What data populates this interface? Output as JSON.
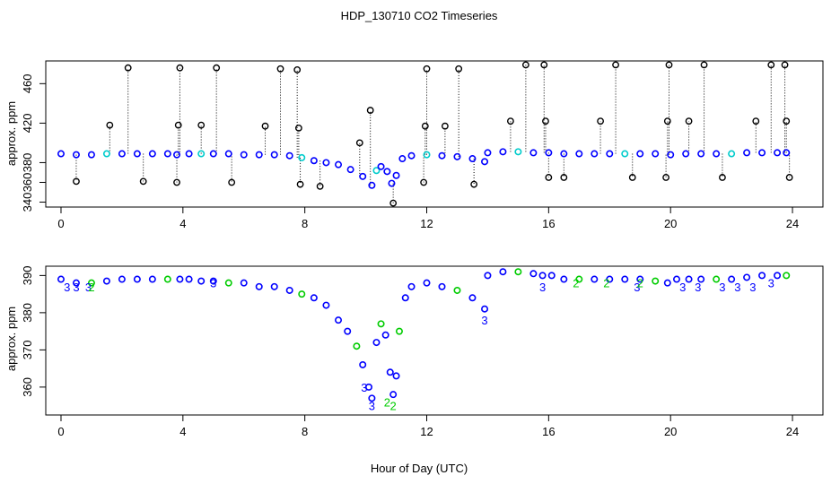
{
  "chart_data": [
    {
      "type": "scatter",
      "title": "HDP_130710  CO2 Timeseries",
      "xlabel": "",
      "ylabel": "approx. ppm",
      "xlim": [
        -0.5,
        25.0
      ],
      "ylim": [
        335,
        483
      ],
      "x_ticks": [
        0,
        4,
        8,
        12,
        16,
        20,
        24
      ],
      "y_ticks": [
        340,
        360,
        380,
        420,
        460
      ],
      "series": [
        {
          "marker": "open circle",
          "points": [
            [
              0.0,
              389
            ],
            [
              0.5,
              388
            ],
            [
              1.0,
              388
            ],
            [
              1.5,
              389
            ],
            [
              2.0,
              389
            ],
            [
              2.5,
              389
            ],
            [
              3.0,
              389
            ],
            [
              3.5,
              389
            ],
            [
              3.8,
              388
            ],
            [
              4.2,
              389
            ],
            [
              4.6,
              389
            ],
            [
              5.0,
              389
            ],
            [
              5.5,
              389
            ],
            [
              6.0,
              388
            ],
            [
              6.5,
              388
            ],
            [
              7.0,
              388
            ],
            [
              7.5,
              387
            ],
            [
              7.9,
              385
            ],
            [
              8.3,
              382
            ],
            [
              8.7,
              380
            ],
            [
              9.1,
              378
            ],
            [
              9.5,
              373
            ],
            [
              9.9,
              366
            ],
            [
              10.2,
              357
            ],
            [
              10.35,
              372
            ],
            [
              10.5,
              376
            ],
            [
              10.7,
              371
            ],
            [
              10.85,
              359
            ],
            [
              11.0,
              367
            ],
            [
              11.2,
              384
            ],
            [
              11.5,
              387
            ],
            [
              12.0,
              388
            ],
            [
              12.5,
              387
            ],
            [
              13.0,
              386
            ],
            [
              13.5,
              384
            ],
            [
              13.9,
              381
            ],
            [
              14.0,
              390
            ],
            [
              14.5,
              391
            ],
            [
              15.0,
              391
            ],
            [
              15.5,
              390
            ],
            [
              16.0,
              390
            ],
            [
              16.5,
              389
            ],
            [
              17.0,
              389
            ],
            [
              17.5,
              389
            ],
            [
              18.0,
              389
            ],
            [
              18.5,
              389
            ],
            [
              19.0,
              389
            ],
            [
              19.5,
              389
            ],
            [
              20.0,
              388
            ],
            [
              20.5,
              389
            ],
            [
              21.0,
              389
            ],
            [
              21.5,
              389
            ],
            [
              22.0,
              389
            ],
            [
              22.5,
              390
            ],
            [
              23.0,
              390
            ],
            [
              23.5,
              390
            ],
            [
              23.8,
              390
            ]
          ]
        },
        {
          "marker": "open circle (outliers)",
          "points": [
            [
              0.5,
              361
            ],
            [
              1.6,
              418
            ],
            [
              2.2,
              476
            ],
            [
              2.7,
              361
            ],
            [
              3.8,
              360
            ],
            [
              3.85,
              418
            ],
            [
              3.9,
              476
            ],
            [
              4.6,
              418
            ],
            [
              5.1,
              476
            ],
            [
              5.6,
              360
            ],
            [
              6.7,
              417
            ],
            [
              7.2,
              475
            ],
            [
              7.75,
              474
            ],
            [
              7.8,
              415
            ],
            [
              7.85,
              358
            ],
            [
              8.5,
              356
            ],
            [
              9.8,
              400
            ],
            [
              10.15,
              433
            ],
            [
              10.9,
              339
            ],
            [
              11.9,
              360
            ],
            [
              11.95,
              417
            ],
            [
              12.0,
              475
            ],
            [
              12.6,
              417
            ],
            [
              13.05,
              475
            ],
            [
              13.55,
              358
            ],
            [
              14.75,
              422
            ],
            [
              15.25,
              479
            ],
            [
              15.85,
              479
            ],
            [
              15.9,
              422
            ],
            [
              16.0,
              365
            ],
            [
              16.5,
              365
            ],
            [
              17.7,
              422
            ],
            [
              18.2,
              479
            ],
            [
              18.75,
              365
            ],
            [
              19.85,
              365
            ],
            [
              19.9,
              422
            ],
            [
              19.95,
              479
            ],
            [
              20.6,
              422
            ],
            [
              21.1,
              479
            ],
            [
              21.7,
              365
            ],
            [
              22.8,
              422
            ],
            [
              23.3,
              479
            ],
            [
              23.75,
              479
            ],
            [
              23.8,
              422
            ],
            [
              23.9,
              365
            ]
          ]
        }
      ]
    },
    {
      "type": "scatter",
      "title": "",
      "xlabel": "Hour of Day (UTC)",
      "ylabel": "approx. ppm",
      "xlim": [
        -0.5,
        25.0
      ],
      "ylim": [
        352.5,
        392.5
      ],
      "x_ticks": [
        0,
        4,
        8,
        12,
        16,
        20,
        24
      ],
      "y_ticks": [
        360,
        370,
        380,
        390
      ],
      "series": [
        {
          "marker": "open circle",
          "points": [
            [
              0.0,
              389
            ],
            [
              0.5,
              388
            ],
            [
              1.0,
              388
            ],
            [
              1.5,
              388.5
            ],
            [
              2.0,
              389
            ],
            [
              2.5,
              389
            ],
            [
              3.0,
              389
            ],
            [
              3.5,
              389
            ],
            [
              3.9,
              389
            ],
            [
              4.2,
              389
            ],
            [
              4.6,
              388.5
            ],
            [
              5.0,
              388.5
            ],
            [
              5.5,
              388
            ],
            [
              6.0,
              388
            ],
            [
              6.5,
              387
            ],
            [
              7.0,
              387
            ],
            [
              7.5,
              386
            ],
            [
              7.9,
              385
            ],
            [
              8.3,
              384
            ],
            [
              8.7,
              382
            ],
            [
              9.1,
              378
            ],
            [
              9.4,
              375
            ],
            [
              9.7,
              371
            ],
            [
              9.9,
              366
            ],
            [
              10.1,
              360
            ],
            [
              10.2,
              357
            ],
            [
              10.35,
              372
            ],
            [
              10.5,
              377
            ],
            [
              10.65,
              374
            ],
            [
              10.8,
              364
            ],
            [
              10.9,
              358
            ],
            [
              11.0,
              363
            ],
            [
              11.1,
              375
            ],
            [
              11.3,
              384
            ],
            [
              11.5,
              387
            ],
            [
              12.0,
              388
            ],
            [
              12.5,
              387
            ],
            [
              13.0,
              386
            ],
            [
              13.5,
              384
            ],
            [
              13.9,
              381
            ],
            [
              14.0,
              390
            ],
            [
              14.5,
              391
            ],
            [
              15.0,
              391
            ],
            [
              15.5,
              390.5
            ],
            [
              15.8,
              390
            ],
            [
              16.1,
              390
            ],
            [
              16.5,
              389
            ],
            [
              17.0,
              389
            ],
            [
              17.5,
              389
            ],
            [
              18.0,
              389
            ],
            [
              18.5,
              389
            ],
            [
              19.0,
              389
            ],
            [
              19.5,
              388.5
            ],
            [
              19.9,
              388
            ],
            [
              20.2,
              389
            ],
            [
              20.6,
              389
            ],
            [
              21.0,
              389
            ],
            [
              21.5,
              389
            ],
            [
              22.0,
              389
            ],
            [
              22.5,
              389.5
            ],
            [
              23.0,
              390
            ],
            [
              23.5,
              390
            ],
            [
              23.8,
              390
            ]
          ]
        },
        {
          "marker": "numeral 3",
          "points": [
            [
              0.2,
              387
            ],
            [
              0.5,
              387
            ],
            [
              0.9,
              387
            ],
            [
              5.0,
              388
            ],
            [
              9.95,
              360
            ],
            [
              10.2,
              355
            ],
            [
              13.9,
              378
            ],
            [
              15.8,
              387
            ],
            [
              18.9,
              387
            ],
            [
              20.4,
              387
            ],
            [
              20.9,
              387
            ],
            [
              21.7,
              387
            ],
            [
              22.2,
              387
            ],
            [
              22.7,
              387
            ],
            [
              23.3,
              388
            ]
          ]
        },
        {
          "marker": "numeral 2",
          "points": [
            [
              1.0,
              387
            ],
            [
              10.7,
              356
            ],
            [
              10.9,
              355
            ],
            [
              16.9,
              388
            ],
            [
              17.9,
              388
            ],
            [
              19.0,
              388
            ]
          ]
        }
      ]
    }
  ],
  "colors": {
    "axis": "#000000",
    "blue": "#0000ff",
    "green": "#00cc00",
    "cyan": "#00cccc",
    "outlier": "#000000",
    "dotted_line": "#000000"
  }
}
